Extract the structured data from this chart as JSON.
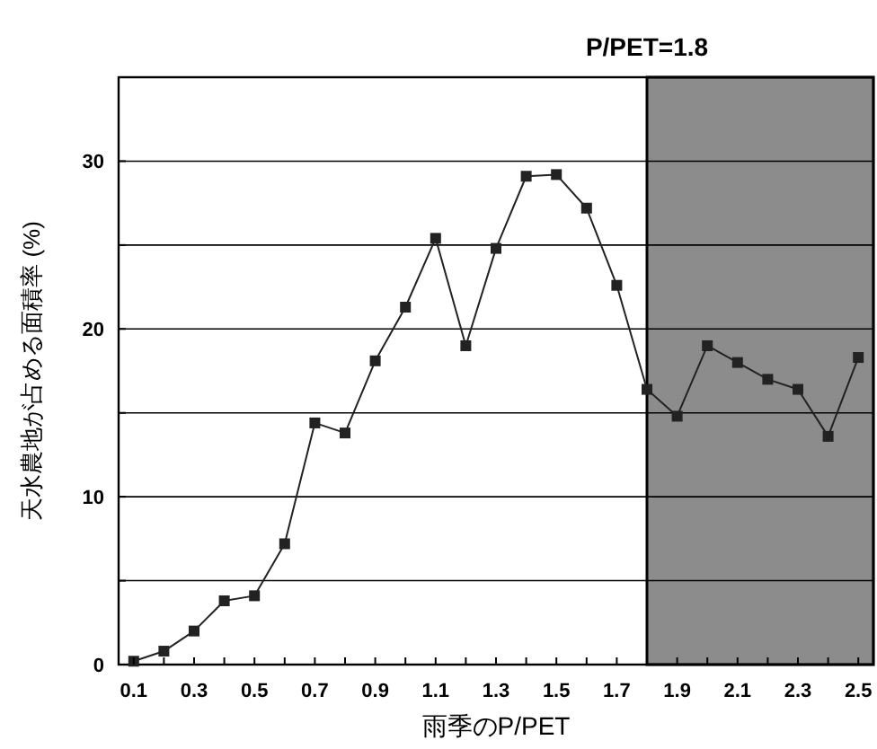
{
  "chart_data": {
    "type": "line",
    "xlabel": "雨季のP/PET",
    "ylabel": "天水農地が占める面積率 (%)",
    "x": [
      0.1,
      0.2,
      0.3,
      0.4,
      0.5,
      0.6,
      0.7,
      0.8,
      0.9,
      1.0,
      1.1,
      1.2,
      1.3,
      1.4,
      1.5,
      1.6,
      1.7,
      1.8,
      1.9,
      2.0,
      2.1,
      2.2,
      2.3,
      2.4,
      2.5
    ],
    "series": [
      {
        "color": "#222222",
        "values": [
          0.2,
          0.8,
          2,
          3.8,
          4.1,
          7.2,
          14.4,
          13.8,
          18.1,
          21.3,
          25.4,
          19,
          24.8,
          29.1,
          29.2,
          27.2,
          22.6,
          16.4,
          14.8,
          19.0,
          18.0,
          17.0,
          16.4,
          13.6,
          18.3
        ]
      }
    ],
    "xlim": [
      0.05,
      2.55
    ],
    "xticks": [
      0.1,
      {
        "value": 0.2,
        "label": null
      },
      0.3,
      {
        "value": 0.4,
        "label": null
      },
      0.5,
      {
        "value": 0.6,
        "label": null
      },
      0.7,
      {
        "value": 0.8,
        "label": null
      },
      0.9,
      {
        "value": 1.0,
        "label": null
      },
      1.1,
      {
        "value": 1.2,
        "label": null
      },
      1.3,
      {
        "value": 1.4,
        "label": null
      },
      1.5,
      {
        "value": 1.6,
        "label": null
      },
      1.7,
      {
        "value": 1.8,
        "label": null
      },
      1.9,
      {
        "value": 2.0,
        "label": null
      },
      2.1,
      {
        "value": 2.2,
        "label": null
      },
      2.3,
      {
        "value": 2.4,
        "label": null
      },
      2.5
    ],
    "ylim": [
      0,
      35
    ],
    "yticks": [
      0,
      {
        "value": 5,
        "label": null
      },
      10,
      {
        "value": 15,
        "label": null
      },
      20,
      {
        "value": 25,
        "label": null
      },
      30,
      {
        "value": 35,
        "label": null
      }
    ],
    "grid": "y",
    "marker": "square",
    "line_style": "solid",
    "bands": [
      {
        "axis": "x",
        "from": 1.8,
        "to": 2.55,
        "label": "P/PET=1.8",
        "color": "#8c8c8c"
      }
    ]
  }
}
